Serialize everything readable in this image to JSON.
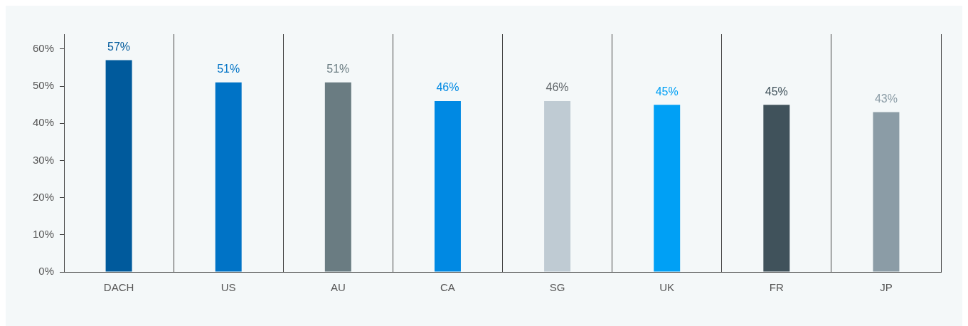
{
  "chart_data": {
    "type": "bar",
    "categories": [
      "DACH",
      "US",
      "AU",
      "CA",
      "SG",
      "UK",
      "FR",
      "JP"
    ],
    "values": [
      57,
      51,
      51,
      46,
      46,
      45,
      45,
      43
    ],
    "colors": [
      "#005a9c",
      "#0073c6",
      "#6a7c82",
      "#0089e3",
      "#bfcbd3",
      "#00a0f5",
      "#40525b",
      "#8b9ca6"
    ],
    "value_labels": [
      "57%",
      "51%",
      "51%",
      "46%",
      "46%",
      "45%",
      "45%",
      "43%"
    ],
    "ylim": [
      0,
      64
    ],
    "yticks": [
      {
        "value": 0,
        "label": "0%"
      },
      {
        "value": 10,
        "label": "10%"
      },
      {
        "value": 20,
        "label": "20%"
      },
      {
        "value": 30,
        "label": "30%"
      },
      {
        "value": 40,
        "label": "40%"
      },
      {
        "value": 50,
        "label": "50%"
      },
      {
        "value": 60,
        "label": "60%"
      }
    ],
    "grid": "x",
    "legend": false
  }
}
